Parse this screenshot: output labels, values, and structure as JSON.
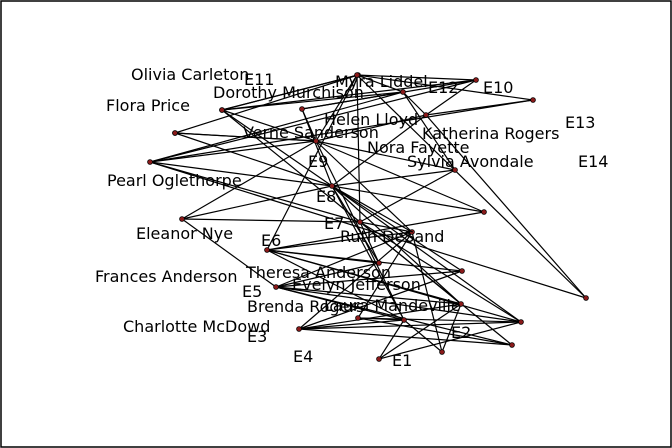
{
  "graph": {
    "node_color": "#8b1a1a",
    "edge_color": "#000000",
    "nodes": [
      {
        "id": "E1",
        "label": "E1"
      },
      {
        "id": "E2",
        "label": "E2"
      },
      {
        "id": "E3",
        "label": "E3"
      },
      {
        "id": "E4",
        "label": "E4"
      },
      {
        "id": "E5",
        "label": "E5"
      },
      {
        "id": "E6",
        "label": "E6"
      },
      {
        "id": "E7",
        "label": "E7"
      },
      {
        "id": "E8",
        "label": "E8"
      },
      {
        "id": "E9",
        "label": "E9"
      },
      {
        "id": "E10",
        "label": "E10"
      },
      {
        "id": "E11",
        "label": "E11"
      },
      {
        "id": "E12",
        "label": "E12"
      },
      {
        "id": "E13",
        "label": "E13"
      },
      {
        "id": "E14",
        "label": "E14"
      },
      {
        "id": "evelyn",
        "label": "Evelyn Jefferson"
      },
      {
        "id": "laura",
        "label": "Laura Mandeville"
      },
      {
        "id": "theresa",
        "label": "Theresa Anderson"
      },
      {
        "id": "brenda",
        "label": "Brenda Rogers"
      },
      {
        "id": "charlotte",
        "label": "Charlotte McDowd"
      },
      {
        "id": "frances",
        "label": "Frances Anderson"
      },
      {
        "id": "eleanor",
        "label": "Eleanor Nye"
      },
      {
        "id": "pearl",
        "label": "Pearl Oglethorpe"
      },
      {
        "id": "ruth",
        "label": "Ruth DeSand"
      },
      {
        "id": "verne",
        "label": "Verne Sanderson"
      },
      {
        "id": "myra",
        "label": "Myra Liddel"
      },
      {
        "id": "katherina",
        "label": "Katherina Rogers"
      },
      {
        "id": "sylvia",
        "label": "Sylvia Avondale"
      },
      {
        "id": "nora",
        "label": "Nora Fayette"
      },
      {
        "id": "helen",
        "label": "Helen Lloyd"
      },
      {
        "id": "dorothy",
        "label": "Dorothy Murchison"
      },
      {
        "id": "olivia",
        "label": "Olivia Carleton"
      },
      {
        "id": "flora",
        "label": "Flora Price"
      }
    ],
    "edges": [
      [
        "evelyn",
        "E1"
      ],
      [
        "evelyn",
        "E2"
      ],
      [
        "evelyn",
        "E3"
      ],
      [
        "evelyn",
        "E4"
      ],
      [
        "evelyn",
        "E5"
      ],
      [
        "evelyn",
        "E6"
      ],
      [
        "evelyn",
        "E8"
      ],
      [
        "evelyn",
        "E9"
      ],
      [
        "laura",
        "E1"
      ],
      [
        "laura",
        "E2"
      ],
      [
        "laura",
        "E3"
      ],
      [
        "laura",
        "E5"
      ],
      [
        "laura",
        "E6"
      ],
      [
        "laura",
        "E7"
      ],
      [
        "laura",
        "E8"
      ],
      [
        "theresa",
        "E2"
      ],
      [
        "theresa",
        "E3"
      ],
      [
        "theresa",
        "E4"
      ],
      [
        "theresa",
        "E5"
      ],
      [
        "theresa",
        "E6"
      ],
      [
        "theresa",
        "E7"
      ],
      [
        "theresa",
        "E8"
      ],
      [
        "theresa",
        "E9"
      ],
      [
        "brenda",
        "E1"
      ],
      [
        "brenda",
        "E3"
      ],
      [
        "brenda",
        "E4"
      ],
      [
        "brenda",
        "E5"
      ],
      [
        "brenda",
        "E6"
      ],
      [
        "brenda",
        "E7"
      ],
      [
        "brenda",
        "E8"
      ],
      [
        "charlotte",
        "E3"
      ],
      [
        "charlotte",
        "E4"
      ],
      [
        "charlotte",
        "E5"
      ],
      [
        "charlotte",
        "E7"
      ],
      [
        "frances",
        "E3"
      ],
      [
        "frances",
        "E5"
      ],
      [
        "frances",
        "E6"
      ],
      [
        "frances",
        "E8"
      ],
      [
        "eleanor",
        "E5"
      ],
      [
        "eleanor",
        "E6"
      ],
      [
        "eleanor",
        "E7"
      ],
      [
        "eleanor",
        "E8"
      ],
      [
        "pearl",
        "E6"
      ],
      [
        "pearl",
        "E8"
      ],
      [
        "pearl",
        "E9"
      ],
      [
        "ruth",
        "E5"
      ],
      [
        "ruth",
        "E7"
      ],
      [
        "ruth",
        "E8"
      ],
      [
        "ruth",
        "E9"
      ],
      [
        "verne",
        "E7"
      ],
      [
        "verne",
        "E8"
      ],
      [
        "verne",
        "E9"
      ],
      [
        "verne",
        "E12"
      ],
      [
        "myra",
        "E8"
      ],
      [
        "myra",
        "E9"
      ],
      [
        "myra",
        "E10"
      ],
      [
        "myra",
        "E12"
      ],
      [
        "katherina",
        "E8"
      ],
      [
        "katherina",
        "E9"
      ],
      [
        "katherina",
        "E10"
      ],
      [
        "katherina",
        "E12"
      ],
      [
        "katherina",
        "E13"
      ],
      [
        "katherina",
        "E14"
      ],
      [
        "sylvia",
        "E7"
      ],
      [
        "sylvia",
        "E8"
      ],
      [
        "sylvia",
        "E9"
      ],
      [
        "sylvia",
        "E10"
      ],
      [
        "sylvia",
        "E12"
      ],
      [
        "sylvia",
        "E13"
      ],
      [
        "sylvia",
        "E14"
      ],
      [
        "nora",
        "E6"
      ],
      [
        "nora",
        "E7"
      ],
      [
        "nora",
        "E9"
      ],
      [
        "nora",
        "E10"
      ],
      [
        "nora",
        "E11"
      ],
      [
        "nora",
        "E12"
      ],
      [
        "nora",
        "E13"
      ],
      [
        "nora",
        "E14"
      ],
      [
        "helen",
        "E7"
      ],
      [
        "helen",
        "E8"
      ],
      [
        "helen",
        "E10"
      ],
      [
        "helen",
        "E11"
      ],
      [
        "helen",
        "E12"
      ],
      [
        "dorothy",
        "E8"
      ],
      [
        "dorothy",
        "E9"
      ],
      [
        "olivia",
        "E9"
      ],
      [
        "olivia",
        "E11"
      ],
      [
        "flora",
        "E9"
      ],
      [
        "flora",
        "E11"
      ]
    ]
  }
}
